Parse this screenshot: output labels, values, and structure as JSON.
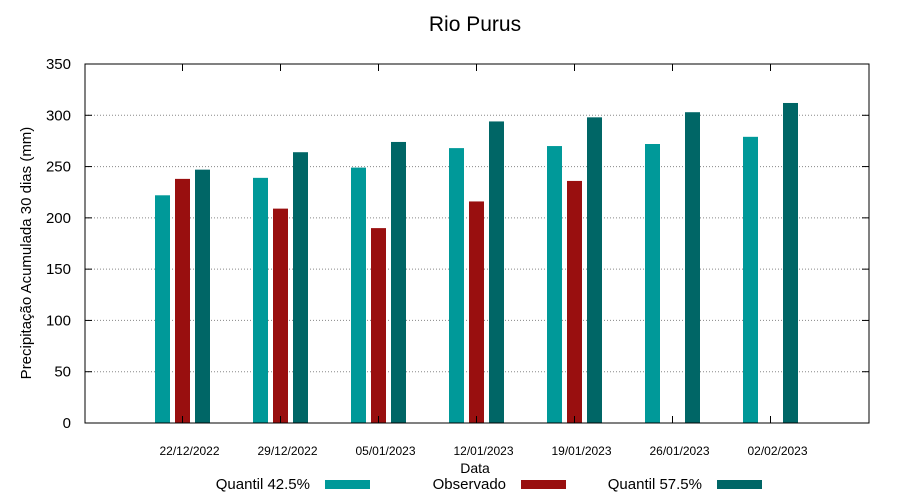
{
  "chart_data": {
    "type": "bar",
    "title": "Rio Purus",
    "xlabel": "Data",
    "ylabel": "Precipitação Acumulada 30 dias (mm)",
    "ylim": [
      0,
      350
    ],
    "yticks": [
      0,
      50,
      100,
      150,
      200,
      250,
      300,
      350
    ],
    "grid": true,
    "legend_position": "bottom",
    "categories": [
      "22/12/2022",
      "29/12/2022",
      "05/01/2023",
      "12/01/2023",
      "19/01/2023",
      "26/01/2023",
      "02/02/2023"
    ],
    "series": [
      {
        "name": "Quantil 42.5%",
        "color": "#009999",
        "values": [
          222,
          239,
          249,
          268,
          270,
          272,
          279
        ]
      },
      {
        "name": "Observado",
        "color": "#990f0f",
        "values": [
          238,
          209,
          190,
          216,
          236,
          null,
          null
        ]
      },
      {
        "name": "Quantil 57.5%",
        "color": "#006666",
        "values": [
          247,
          264,
          274,
          294,
          298,
          303,
          312
        ]
      }
    ]
  }
}
